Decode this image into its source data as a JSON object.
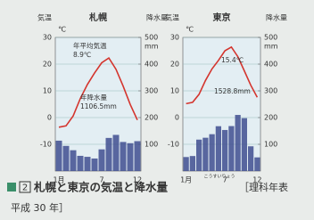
{
  "chart_data": [
    {
      "type": "combo",
      "title": "札幌",
      "y_label": "気温",
      "y_unit": "℃",
      "y2_label": "降水量",
      "y2_unit": "mm",
      "categories": [
        "1月",
        null,
        null,
        null,
        null,
        null,
        "7",
        null,
        null,
        null,
        null,
        "12"
      ],
      "series": [
        {
          "type": "bar",
          "axis": "y2",
          "color": "#3f4d8f",
          "values": [
            113.6,
            94.0,
            77.8,
            56.8,
            53.1,
            46.8,
            81.0,
            123.8,
            135.2,
            108.7,
            104.1,
            111.7
          ]
        },
        {
          "type": "line",
          "color": "#d4352e",
          "values": [
            -3.6,
            -3.1,
            0.6,
            7.1,
            12.4,
            16.7,
            20.5,
            22.3,
            18.1,
            11.8,
            4.9,
            -0.9
          ]
        }
      ],
      "ylim": [
        -20,
        30
      ],
      "yticks": [
        -10,
        0,
        10,
        20,
        30
      ],
      "y2lim": [
        0,
        500
      ],
      "y2ticks": [
        100,
        200,
        300,
        400,
        500
      ],
      "grid": true,
      "annotations": [
        "年平均気温",
        "8.9℃",
        "年降水量",
        "1106.5mm"
      ]
    },
    {
      "type": "combo",
      "title": "東京",
      "y_label": "気温",
      "y_unit": "℃",
      "y2_label": "降水量",
      "y2_unit": "mm",
      "categories": [
        "1月",
        null,
        null,
        null,
        null,
        null,
        "7",
        null,
        null,
        null,
        null,
        "12"
      ],
      "series": [
        {
          "type": "bar",
          "axis": "y2",
          "color": "#3f4d8f",
          "values": [
            52.3,
            56.1,
            117.5,
            124.5,
            137.8,
            167.7,
            153.5,
            168.2,
            209.9,
            197.8,
            92.5,
            51.0
          ]
        },
        {
          "type": "line",
          "color": "#d4352e",
          "values": [
            5.2,
            5.7,
            8.7,
            13.9,
            18.2,
            21.4,
            25.0,
            26.4,
            22.8,
            17.5,
            12.1,
            7.6
          ]
        }
      ],
      "ylim": [
        -20,
        30
      ],
      "yticks": [
        -10,
        0,
        10,
        20,
        30
      ],
      "y2lim": [
        0,
        500
      ],
      "y2ticks": [
        100,
        200,
        300,
        400,
        500
      ],
      "grid": true,
      "annotations": [
        "15.4℃",
        "1528.8mm"
      ]
    }
  ],
  "caption": {
    "number": "2",
    "text": "札幌と東京の気温と降水量",
    "ruby": "こうすいりょう",
    "source": "［理科年表",
    "source2": "平成 30 年］"
  }
}
